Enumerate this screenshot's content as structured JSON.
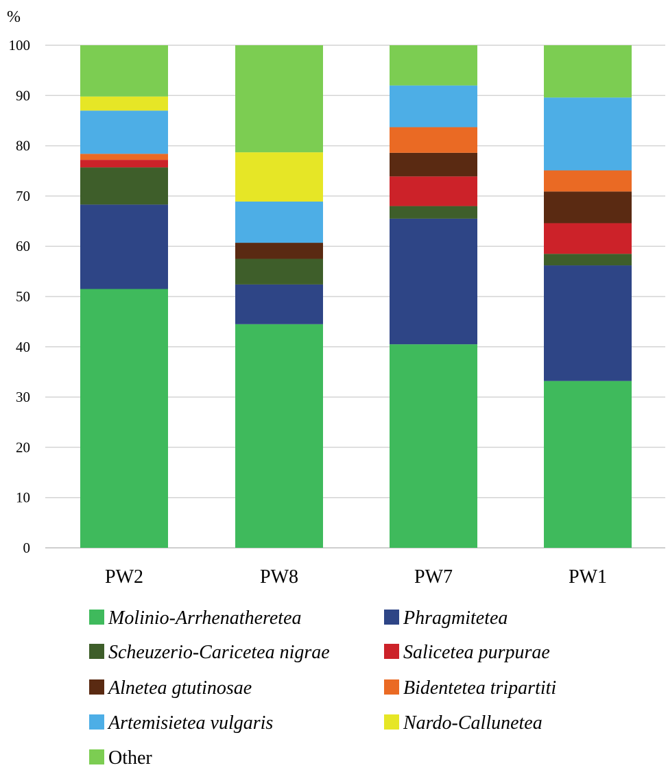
{
  "chart_data": {
    "type": "bar",
    "stacked": true,
    "ylabel": "%",
    "ylim": [
      0,
      100
    ],
    "yticks": [
      0,
      10,
      20,
      30,
      40,
      50,
      60,
      70,
      80,
      90,
      100
    ],
    "grid": true,
    "legend_position": "bottom",
    "categories": [
      "PW2",
      "PW8",
      "PW7",
      "PW1"
    ],
    "series": [
      {
        "name": "Molinio-Arrhenatheretea",
        "italic": true,
        "color": "#3fba5c",
        "values": [
          51.5,
          44.5,
          40.5,
          33.2
        ]
      },
      {
        "name": "Phragmitetea",
        "italic": true,
        "color": "#2e4586",
        "values": [
          16.8,
          7.9,
          25.0,
          23.0
        ]
      },
      {
        "name": "Scheuzerio-Caricetea nigrae",
        "italic": true,
        "color": "#3e5e2a",
        "values": [
          7.4,
          5.1,
          2.5,
          2.3
        ]
      },
      {
        "name": "Salicetea purpurae",
        "italic": true,
        "color": "#cc2229",
        "values": [
          1.5,
          0.0,
          5.9,
          6.1
        ]
      },
      {
        "name": "Alnetea gtutinosae",
        "italic": true,
        "color": "#5a2a12",
        "values": [
          0.0,
          3.2,
          4.7,
          6.3
        ]
      },
      {
        "name": "Bidentetea tripartiti",
        "italic": true,
        "color": "#ea6a24",
        "values": [
          1.2,
          0.0,
          5.1,
          4.2
        ]
      },
      {
        "name": "Artemisietea vulgaris",
        "italic": true,
        "color": "#4daee6",
        "values": [
          8.6,
          8.2,
          8.3,
          14.5
        ]
      },
      {
        "name": "Nardo-Callunetea",
        "italic": true,
        "color": "#e6e626",
        "values": [
          2.8,
          9.8,
          0.0,
          0.0
        ]
      },
      {
        "name": "Other",
        "italic": false,
        "color": "#7ccd52",
        "values": [
          10.2,
          21.3,
          8.0,
          10.4
        ]
      }
    ]
  }
}
